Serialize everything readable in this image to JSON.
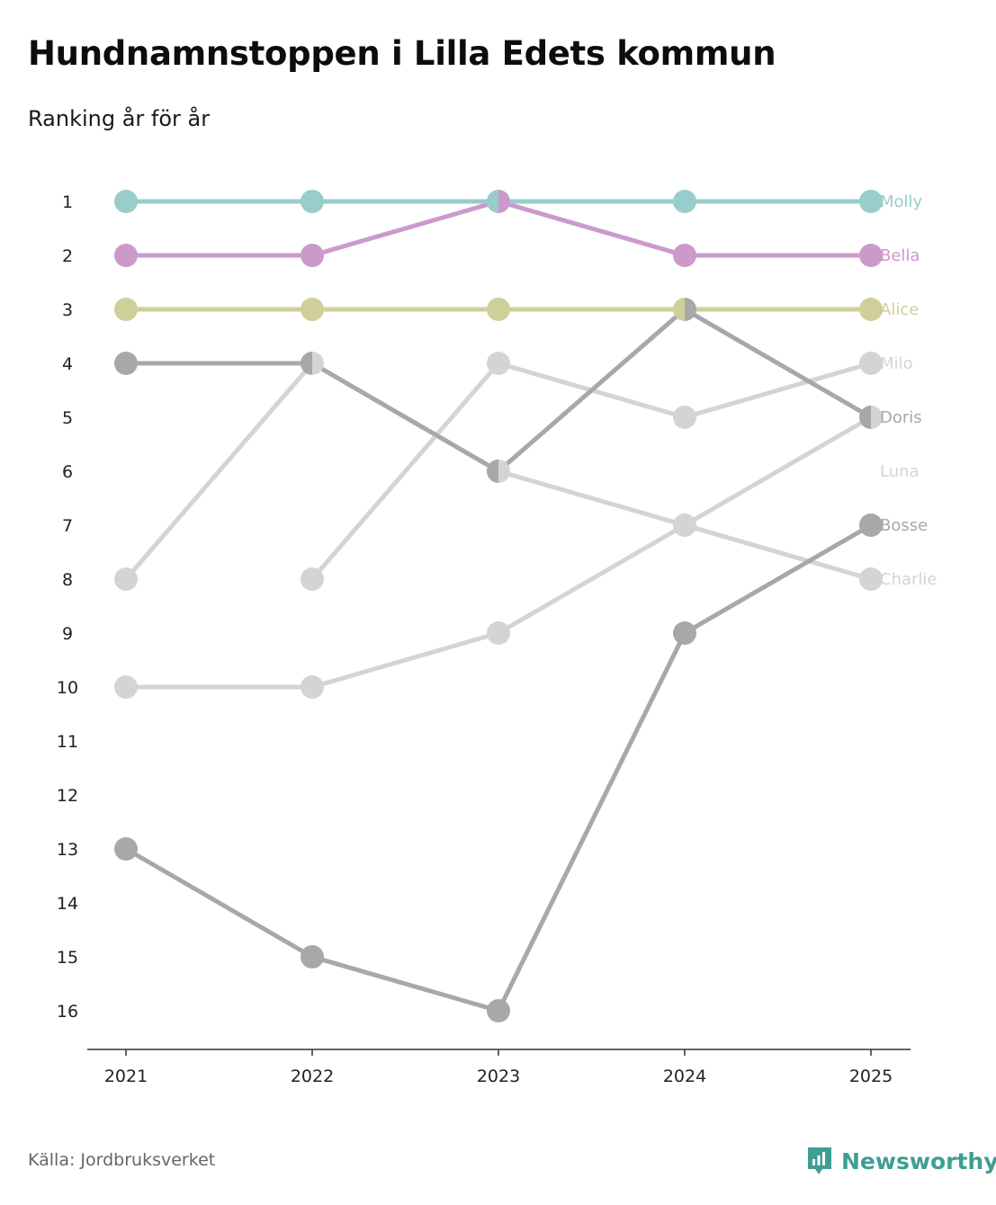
{
  "header": {
    "title": "Hundnamnstoppen i Lilla Edets kommun",
    "subtitle": "Ranking år för år"
  },
  "footer": {
    "source": "Källa: Jordbruksverket",
    "brand": "Newsworthy",
    "brand_icon": "newsworthy-logo-icon"
  },
  "chart_data": {
    "type": "line",
    "title": "Hundnamnstoppen i Lilla Edets kommun",
    "subtitle": "Ranking år för år",
    "xlabel": "",
    "ylabel": "",
    "x": [
      "2021",
      "2022",
      "2023",
      "2024",
      "2025"
    ],
    "ylim": [
      1,
      16
    ],
    "y_inverted": true,
    "y_ticks": [
      1,
      2,
      3,
      4,
      5,
      6,
      7,
      8,
      9,
      10,
      11,
      12,
      13,
      14,
      15,
      16
    ],
    "grid": false,
    "series": [
      {
        "name": "Charlie",
        "color": "#d4d4d4",
        "values": [
          8,
          4,
          6,
          7,
          8
        ]
      },
      {
        "name": "Luna",
        "color": "#d4d4d4",
        "values": [
          10,
          10,
          9,
          7,
          5
        ]
      },
      {
        "name": "Milo",
        "color": "#d4d4d4",
        "values": [
          null,
          8,
          4,
          5,
          4
        ]
      },
      {
        "name": "Bosse",
        "color": "#a8a8a8",
        "values": [
          13,
          15,
          16,
          9,
          7
        ]
      },
      {
        "name": "Doris",
        "color": "#a8a8a8",
        "values": [
          4,
          4,
          6,
          3,
          5
        ]
      },
      {
        "name": "Alice",
        "color": "#cfcf9a",
        "values": [
          3,
          3,
          3,
          3,
          3
        ]
      },
      {
        "name": "Bella",
        "color": "#cb9acb",
        "values": [
          2,
          2,
          1,
          2,
          2
        ]
      },
      {
        "name": "Molly",
        "color": "#98cdcb",
        "values": [
          1,
          1,
          1,
          1,
          1
        ]
      }
    ],
    "end_labels": [
      {
        "text": "Molly",
        "rank": 1,
        "color": "#98cdcb"
      },
      {
        "text": "Bella",
        "rank": 2,
        "color": "#cb9acb"
      },
      {
        "text": "Alice",
        "rank": 3,
        "color": "#cfcf9a"
      },
      {
        "text": "Milo",
        "rank": 4,
        "color": "#d4d4d4"
      },
      {
        "text": "Doris",
        "rank": 5,
        "color": "#a8a8a8"
      },
      {
        "text": "Luna",
        "rank": 6,
        "color": "#d4d4d4"
      },
      {
        "text": "Bosse",
        "rank": 7,
        "color": "#a8a8a8"
      },
      {
        "text": "Charlie",
        "rank": 8,
        "color": "#d4d4d4"
      }
    ]
  }
}
